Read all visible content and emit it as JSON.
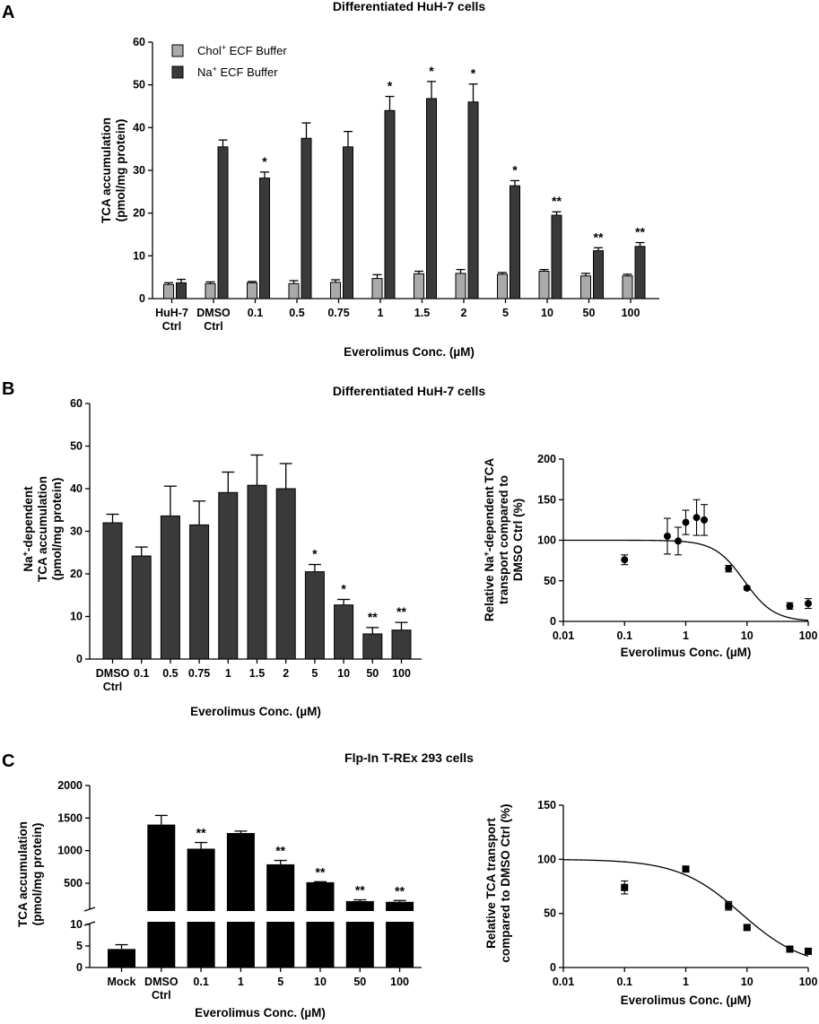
{
  "figure": {
    "panel_labels": [
      "A",
      "B",
      "C"
    ]
  },
  "chart_data": [
    {
      "id": "A",
      "type": "bar",
      "title": "Differentiated HuH-7 cells",
      "categories": [
        "HuH-7\nCtrl",
        "DMSO\nCtrl",
        "0.1",
        "0.5",
        "0.75",
        "1",
        "1.5",
        "2",
        "5",
        "10",
        "50",
        "100"
      ],
      "series": [
        {
          "name": "Chol+ ECF Buffer",
          "name_base": "Chol",
          "name_sup": "+",
          "name_rest": " ECF Buffer",
          "color": "#aaaaaa",
          "values": [
            3.3,
            3.5,
            3.7,
            3.5,
            3.8,
            4.7,
            5.8,
            5.9,
            5.7,
            6.4,
            5.3,
            5.3
          ],
          "errors": [
            0.4,
            0.4,
            0.3,
            0.7,
            0.6,
            0.9,
            0.6,
            0.9,
            0.4,
            0.4,
            0.6,
            0.4
          ]
        },
        {
          "name": "Na+ ECF Buffer",
          "name_base": "Na",
          "name_sup": "+",
          "name_rest": " ECF Buffer",
          "color": "#3a3a3a",
          "values": [
            3.7,
            35.5,
            28.2,
            37.5,
            35.5,
            44.0,
            46.8,
            46.0,
            26.4,
            19.5,
            11.2,
            12.2
          ],
          "errors": [
            0.8,
            1.6,
            1.4,
            3.6,
            3.6,
            3.3,
            4.0,
            4.2,
            1.2,
            0.8,
            0.7,
            0.9
          ]
        }
      ],
      "annotations": [
        "",
        "",
        "*",
        "",
        "",
        "*",
        "*",
        "*",
        "*",
        "**",
        "**",
        "**"
      ],
      "ylim": [
        0,
        60
      ],
      "yticks": [
        "0",
        "10",
        "20",
        "30",
        "40",
        "50",
        "60"
      ],
      "xlabel": "Everolimus Conc. (µM)",
      "ylabel": [
        "TCA accumulation",
        "(pmol/mg protein)"
      ],
      "legend": "top-left"
    },
    {
      "id": "B-left",
      "type": "bar",
      "title": "Differentiated HuH-7 cells",
      "categories": [
        "DMSO\nCtrl",
        "0.1",
        "0.5",
        "0.75",
        "1",
        "1.5",
        "2",
        "5",
        "10",
        "50",
        "100"
      ],
      "values": [
        32.0,
        24.2,
        33.6,
        31.5,
        39.1,
        40.8,
        40.0,
        20.5,
        12.7,
        5.9,
        6.8
      ],
      "errors": [
        2.0,
        2.1,
        7.0,
        5.6,
        4.8,
        7.1,
        5.9,
        1.7,
        1.3,
        1.5,
        1.8
      ],
      "color": "#3a3a3a",
      "annotations": [
        "",
        "",
        "",
        "",
        "",
        "",
        "",
        "*",
        "*",
        "**",
        "**"
      ],
      "ylim": [
        0,
        60
      ],
      "yticks": [
        "0",
        "10",
        "20",
        "30",
        "40",
        "50",
        "60"
      ],
      "xlabel": "Everolimus Conc. (µM)",
      "ylabel": [
        "Na+-dependent",
        "TCA accumulation",
        "(pmol/mg protein)"
      ],
      "ylabel_parts": {
        "base": "Na",
        "sup": "+",
        "rest": "-dependent"
      }
    },
    {
      "id": "B-right",
      "type": "scatter",
      "x": [
        0.1,
        0.5,
        0.75,
        1,
        1.5,
        2,
        5,
        10,
        50,
        100
      ],
      "y": [
        76,
        105,
        99,
        122,
        128,
        125,
        65,
        41,
        19,
        22
      ],
      "errors": [
        6,
        22,
        17,
        15,
        22,
        19,
        4,
        2,
        4,
        6
      ],
      "marker": "circle",
      "fit": {
        "model": "sigmoid",
        "top": 100,
        "bottom": 0,
        "ic50": 9,
        "hill": 1.8
      },
      "xscale": "log",
      "xlim": [
        0.01,
        100
      ],
      "xticks": [
        "0.01",
        "0.1",
        "1",
        "10",
        "100"
      ],
      "ylim": [
        0,
        200
      ],
      "yticks": [
        "0",
        "50",
        "100",
        "150",
        "200"
      ],
      "xlabel": "Everolimus Conc. (µM)",
      "ylabel": [
        "Relative Na+-dependent TCA",
        "transport compared to",
        "DMSO Ctrl (%)"
      ],
      "ylabel_parts": {
        "pre": "Relative Na",
        "sup": "+",
        "post": "-dependent TCA"
      }
    },
    {
      "id": "C-left",
      "type": "bar",
      "title": "Flp-In T-REx 293 cells",
      "categories": [
        "Mock",
        "DMSO\nCtrl",
        "0.1",
        "1",
        "5",
        "10",
        "50",
        "100"
      ],
      "values": [
        4.3,
        1400,
        1030,
        1270,
        790,
        515,
        225,
        215
      ],
      "errors": [
        1.0,
        140,
        95,
        30,
        60,
        8,
        20,
        20
      ],
      "color": "#000000",
      "annotations": [
        "",
        "",
        "**",
        "",
        "**",
        "**",
        "**",
        "**"
      ],
      "axis_break": {
        "lower": [
          0,
          10
        ],
        "upper": [
          0,
          2000
        ]
      },
      "yticks_lower": [
        "0",
        "5",
        "10"
      ],
      "yticks_upper": [
        "500",
        "1000",
        "1500",
        "2000"
      ],
      "xlabel": "Everolimus Conc. (µM)",
      "ylabel": [
        "TCA accumulation",
        "(pmol/mg protein)"
      ]
    },
    {
      "id": "C-right",
      "type": "scatter",
      "x": [
        0.1,
        1,
        5,
        10,
        50,
        100
      ],
      "y": [
        74,
        91,
        57,
        37,
        17,
        15
      ],
      "errors": [
        6,
        2,
        4,
        2,
        1,
        1
      ],
      "marker": "square",
      "fit": {
        "model": "sigmoid",
        "top": 100,
        "bottom": 0,
        "ic50": 8,
        "hill": 0.85
      },
      "xscale": "log",
      "xlim": [
        0.01,
        100
      ],
      "xticks": [
        "0.01",
        "0.1",
        "1",
        "10",
        "100"
      ],
      "ylim": [
        0,
        150
      ],
      "yticks": [
        "0",
        "50",
        "100",
        "150"
      ],
      "xlabel": "Everolimus Conc. (µM)",
      "ylabel": [
        "Relative TCA transport",
        "compared to DMSO Ctrl (%)"
      ]
    }
  ]
}
